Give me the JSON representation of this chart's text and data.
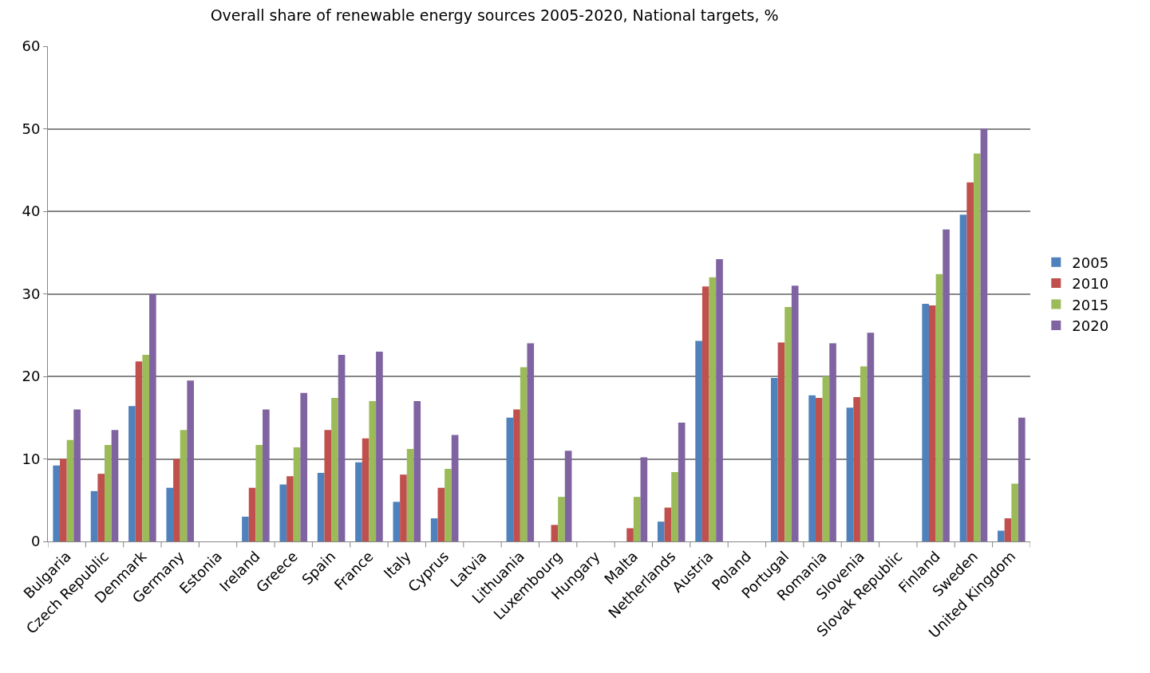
{
  "chart_data": {
    "type": "bar",
    "title": "Overall share of renewable energy sources 2005-2020, National targets, %",
    "categories": [
      "Bulgaria",
      "Czech Republic",
      "Denmark",
      "Germany",
      "Estonia",
      "Ireland",
      "Greece",
      "Spain",
      "France",
      "Italy",
      "Cyprus",
      "Latvia",
      "Lithuania",
      "Luxembourg",
      "Hungary",
      "Malta",
      "Netherlands",
      "Austria",
      "Poland",
      "Portugal",
      "Romania",
      "Slovenia",
      "Slovak Republic",
      "Finland",
      "Sweden",
      "United Kingdom"
    ],
    "series": [
      {
        "name": "2005",
        "color": "#4f81bd",
        "values": [
          9.2,
          6.1,
          16.4,
          6.5,
          null,
          3.0,
          6.9,
          8.3,
          9.6,
          4.8,
          2.8,
          null,
          15.0,
          null,
          null,
          null,
          2.4,
          24.3,
          null,
          19.8,
          17.7,
          16.2,
          null,
          28.8,
          39.6,
          1.3
        ]
      },
      {
        "name": "2010",
        "color": "#c0504d",
        "values": [
          10.0,
          8.2,
          21.8,
          10.0,
          null,
          6.5,
          7.9,
          13.5,
          12.5,
          8.1,
          6.5,
          null,
          16.0,
          2.0,
          null,
          1.6,
          4.1,
          30.9,
          null,
          24.1,
          17.4,
          17.5,
          null,
          28.6,
          43.5,
          2.8
        ]
      },
      {
        "name": "2015",
        "color": "#9bbb59",
        "values": [
          12.3,
          11.7,
          22.6,
          13.5,
          null,
          11.7,
          11.4,
          17.4,
          17.0,
          11.2,
          8.8,
          null,
          21.1,
          5.4,
          null,
          5.4,
          8.4,
          32.0,
          null,
          28.4,
          20.0,
          21.2,
          null,
          32.4,
          47.0,
          7.0
        ]
      },
      {
        "name": "2020",
        "color": "#8064a2",
        "values": [
          16.0,
          13.5,
          30.0,
          19.5,
          null,
          16.0,
          18.0,
          22.6,
          23.0,
          17.0,
          12.9,
          null,
          24.0,
          11.0,
          null,
          10.2,
          14.4,
          34.2,
          null,
          31.0,
          24.0,
          25.3,
          null,
          37.8,
          50.0,
          15.0
        ]
      }
    ],
    "ylim": [
      0,
      60
    ],
    "yticks": [
      0,
      10,
      20,
      30,
      40,
      50,
      60
    ],
    "grid": "y",
    "legend": "right"
  }
}
